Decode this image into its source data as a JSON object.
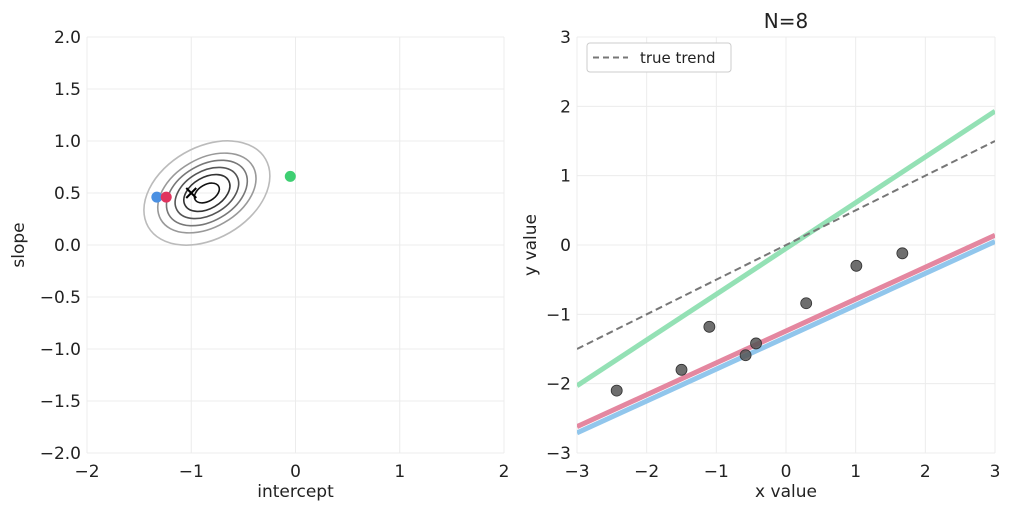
{
  "chart_data": [
    {
      "type": "contour",
      "title": "",
      "xlabel": "intercept",
      "ylabel": "slope",
      "xlim": [
        -2,
        2
      ],
      "ylim": [
        -2,
        2
      ],
      "xticks": [
        -2,
        -1,
        0,
        1,
        2
      ],
      "xtick_labels": [
        "−2",
        "−1",
        "0",
        "1",
        "2"
      ],
      "yticks": [
        -2.0,
        -1.5,
        -1.0,
        -0.5,
        0.0,
        0.5,
        1.0,
        1.5,
        2.0
      ],
      "ytick_labels": [
        "−2.0",
        "−1.5",
        "−1.0",
        "−0.5",
        "0.0",
        "0.5",
        "1.0",
        "1.5",
        "2.0"
      ],
      "grid": true,
      "contour_center": [
        -0.85,
        0.5
      ],
      "contour_angle_deg": 30,
      "contour_levels": [
        {
          "a": 0.13,
          "b": 0.08,
          "color": "#111111"
        },
        {
          "a": 0.24,
          "b": 0.15,
          "color": "#333333"
        },
        {
          "a": 0.33,
          "b": 0.21,
          "color": "#555555"
        },
        {
          "a": 0.42,
          "b": 0.27,
          "color": "#777777"
        },
        {
          "a": 0.51,
          "b": 0.33,
          "color": "#999999"
        },
        {
          "a": 0.65,
          "b": 0.44,
          "color": "#bbbbbb"
        }
      ],
      "estimate_marker": {
        "x": -1.0,
        "y": 0.5,
        "symbol": "x",
        "color": "#000000"
      },
      "samples": [
        {
          "x": -1.33,
          "y": 0.46,
          "color": "#4a90e2"
        },
        {
          "x": -1.24,
          "y": 0.46,
          "color": "#e0335e"
        },
        {
          "x": -0.05,
          "y": 0.66,
          "color": "#3ecf72"
        }
      ]
    },
    {
      "type": "scatter",
      "title": "N=8",
      "xlabel": "x value",
      "ylabel": "y value",
      "xlim": [
        -3,
        3
      ],
      "ylim": [
        -3,
        3
      ],
      "xticks": [
        -3,
        -2,
        -1,
        0,
        1,
        2,
        3
      ],
      "xtick_labels": [
        "−3",
        "−2",
        "−1",
        "0",
        "1",
        "2",
        "3"
      ],
      "yticks": [
        -3,
        -2,
        -1,
        0,
        1,
        2,
        3
      ],
      "ytick_labels": [
        "−3",
        "−2",
        "−1",
        "0",
        "1",
        "2",
        "3"
      ],
      "grid": true,
      "legend": {
        "position": "top-left",
        "entries": [
          "true trend"
        ]
      },
      "points": {
        "x": [
          -2.43,
          -1.5,
          -1.1,
          -0.58,
          -0.43,
          0.29,
          1.01,
          1.67
        ],
        "y": [
          -2.1,
          -1.8,
          -1.18,
          -1.59,
          -1.42,
          -0.84,
          -0.3,
          -0.12
        ],
        "color": "#555555"
      },
      "true_trend": {
        "intercept": 0.0,
        "slope": 0.5,
        "color": "#777777",
        "style": "dashed"
      },
      "sample_lines": [
        {
          "intercept": -1.33,
          "slope": 0.46,
          "color": "#8cc4ec"
        },
        {
          "intercept": -1.24,
          "slope": 0.46,
          "color": "#e3819b"
        },
        {
          "intercept": -0.05,
          "slope": 0.66,
          "color": "#8fe0b2"
        }
      ]
    }
  ]
}
